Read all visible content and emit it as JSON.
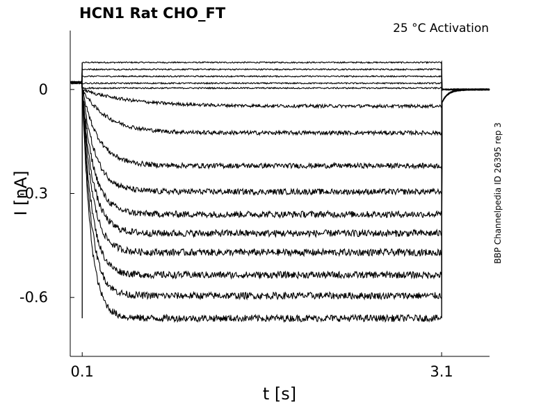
{
  "chart_data": {
    "type": "line",
    "title": "HCN1  Rat  CHO_FT",
    "subtitle": "25 °C  Activation",
    "side_label": "BBP Channelpedia ID 26395 rep 3",
    "xlabel": "t [s]",
    "ylabel": "I [nA]",
    "xlim": [
      0.0,
      3.5
    ],
    "ylim": [
      -0.77,
      0.17
    ],
    "x_ticks": [
      {
        "value": 0.1,
        "label": "0.1"
      },
      {
        "value": 3.1,
        "label": "3.1"
      }
    ],
    "y_ticks": [
      {
        "value": 0,
        "label": "0"
      },
      {
        "value": -0.3,
        "label": "-0.3"
      },
      {
        "value": -0.6,
        "label": "-0.6"
      }
    ],
    "grid": false,
    "line_color": "#000000",
    "step_start": 0.1,
    "step_end": 3.1,
    "traces": [
      {
        "steady": 0.078
      },
      {
        "steady": 0.058
      },
      {
        "steady": 0.038
      },
      {
        "steady": 0.018
      },
      {
        "steady": 0.004
      },
      {
        "steady": -0.048
      },
      {
        "steady": -0.125
      },
      {
        "steady": -0.22
      },
      {
        "steady": -0.295
      },
      {
        "steady": -0.36
      },
      {
        "steady": -0.415
      },
      {
        "steady": -0.47
      },
      {
        "steady": -0.535
      },
      {
        "steady": -0.595
      },
      {
        "steady": -0.66
      }
    ]
  }
}
